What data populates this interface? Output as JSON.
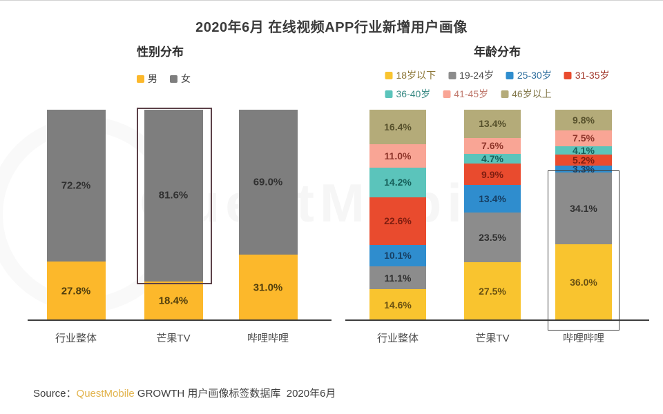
{
  "page": {
    "title": "2020年6月 在线视频APP行业新增用户画像",
    "watermark": "QuestMobile",
    "source": {
      "prefix": "Source：",
      "brand": "QuestMobile",
      "suffix": " GROWTH 用户画像标签数据库  2020年6月"
    }
  },
  "chart_data": [
    {
      "id": "gender-distribution",
      "type": "bar",
      "stacked": true,
      "title": "性别分布",
      "unit": "%",
      "ylim": [
        0,
        100
      ],
      "grid": false,
      "legend_position": "top-left",
      "categories": [
        "行业整体",
        "芒果TV",
        "哔哩哔哩"
      ],
      "series": [
        {
          "name": "男",
          "color": "#FCB82B",
          "label_color": "#4f3d0d",
          "legend_color": "#3f3f3f",
          "values": [
            27.8,
            18.4,
            31.0
          ]
        },
        {
          "name": "女",
          "color": "#7E7E7E",
          "label_color": "#303030",
          "legend_color": "#3f3f3f",
          "values": [
            72.2,
            81.6,
            69.0
          ]
        }
      ],
      "highlight": {
        "category_index": 1,
        "series_from": 1,
        "series_to": 1,
        "color": "#5c4148",
        "border_width": 2,
        "extend_below": 0
      }
    },
    {
      "id": "age-distribution",
      "type": "bar",
      "stacked": true,
      "title": "年龄分布",
      "unit": "%",
      "ylim": [
        0,
        100
      ],
      "grid": false,
      "legend_position": "top-center",
      "legend_wrap": 4,
      "categories": [
        "行业整体",
        "芒果TV",
        "哔哩哔哩"
      ],
      "series": [
        {
          "name": "18岁以下",
          "color": "#F9C42F",
          "label_color": "#6b5212",
          "legend_color": "#8a7434",
          "values": [
            14.6,
            27.5,
            36.0
          ]
        },
        {
          "name": "19-24岁",
          "color": "#8C8C8C",
          "label_color": "#2f2f2f",
          "legend_color": "#4d4d4d",
          "values": [
            11.1,
            23.5,
            34.1
          ]
        },
        {
          "name": "25-30岁",
          "color": "#2F8DCE",
          "label_color": "#173f63",
          "legend_color": "#2b6c9c",
          "values": [
            10.1,
            13.4,
            3.3
          ]
        },
        {
          "name": "31-35岁",
          "color": "#E94B2E",
          "label_color": "#7d1d10",
          "legend_color": "#a03427",
          "values": [
            22.6,
            9.9,
            5.2
          ]
        },
        {
          "name": "36-40岁",
          "color": "#5BC4BB",
          "label_color": "#17605a",
          "legend_color": "#3a8a84",
          "values": [
            14.2,
            4.7,
            4.1
          ]
        },
        {
          "name": "41-45岁",
          "color": "#F9A595",
          "label_color": "#8e352a",
          "legend_color": "#c07a6e",
          "values": [
            11.0,
            7.6,
            7.5
          ]
        },
        {
          "name": "46岁以上",
          "color": "#B4AB79",
          "label_color": "#57512c",
          "legend_color": "#84794c",
          "values": [
            16.4,
            13.4,
            9.8
          ]
        }
      ],
      "highlight": {
        "category_index": 2,
        "series_from": 0,
        "series_to": 1,
        "color": "#3d3d3d",
        "border_width": 1.5,
        "extend_below": 13
      }
    }
  ]
}
